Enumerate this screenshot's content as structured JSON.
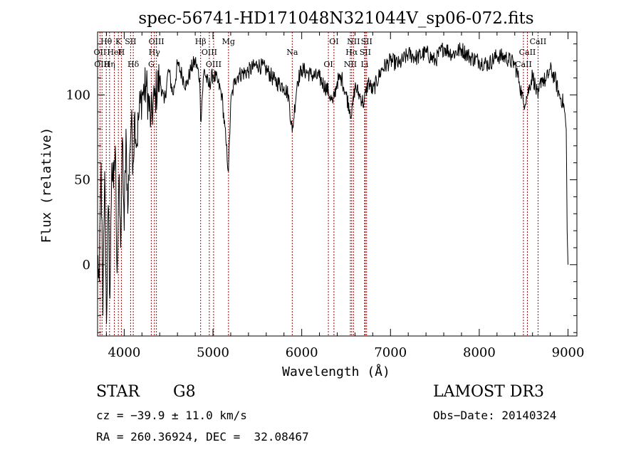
{
  "chart_data": {
    "type": "line",
    "title": "spec-56741-HD171048N321044V_sp06-072.fits",
    "xlabel": "Wavelength (Å)",
    "ylabel": "Flux (relative)",
    "xlim": [
      3700,
      9100
    ],
    "ylim": [
      -42,
      137
    ],
    "x_ticks": [
      4000,
      5000,
      6000,
      7000,
      8000,
      9000
    ],
    "x_tick_labels": [
      "4000",
      "5000",
      "6000",
      "7000",
      "8000",
      "9000"
    ],
    "y_ticks": [
      0,
      50,
      100
    ],
    "y_tick_labels": [
      "0",
      "50",
      "100"
    ],
    "series": [
      {
        "name": "flux",
        "x": [
          3700,
          3720,
          3740,
          3760,
          3780,
          3800,
          3820,
          3840,
          3860,
          3880,
          3900,
          3920,
          3940,
          3960,
          3980,
          4000,
          4020,
          4040,
          4060,
          4080,
          4100,
          4120,
          4140,
          4160,
          4180,
          4200,
          4250,
          4300,
          4350,
          4400,
          4450,
          4500,
          4550,
          4600,
          4650,
          4700,
          4750,
          4800,
          4850,
          4861,
          4900,
          4950,
          5000,
          5050,
          5100,
          5150,
          5175,
          5200,
          5250,
          5300,
          5400,
          5500,
          5600,
          5700,
          5800,
          5850,
          5893,
          5950,
          6000,
          6100,
          6200,
          6300,
          6350,
          6400,
          6450,
          6500,
          6563,
          6600,
          6650,
          6700,
          6750,
          6800,
          6900,
          7000,
          7100,
          7200,
          7300,
          7400,
          7500,
          7600,
          7700,
          7800,
          7900,
          8000,
          8100,
          8200,
          8300,
          8400,
          8450,
          8498,
          8542,
          8600,
          8662,
          8700,
          8750,
          8800,
          8850,
          8900,
          8950,
          8980,
          8990,
          9000
        ],
        "y": [
          5,
          -10,
          60,
          -30,
          55,
          -35,
          35,
          -20,
          60,
          45,
          70,
          -5,
          50,
          10,
          75,
          20,
          80,
          30,
          65,
          85,
          60,
          90,
          70,
          85,
          95,
          100,
          105,
          85,
          100,
          110,
          95,
          115,
          100,
          118,
          112,
          105,
          115,
          120,
          110,
          85,
          115,
          105,
          112,
          108,
          100,
          70,
          55,
          95,
          110,
          112,
          114,
          118,
          115,
          108,
          105,
          100,
          78,
          108,
          115,
          112,
          110,
          102,
          95,
          108,
          110,
          100,
          88,
          105,
          100,
          95,
          108,
          102,
          115,
          120,
          118,
          124,
          122,
          125,
          120,
          128,
          124,
          127,
          122,
          120,
          118,
          123,
          122,
          118,
          108,
          95,
          100,
          112,
          98,
          110,
          108,
          115,
          110,
          100,
          95,
          80,
          20,
          0
        ]
      }
    ],
    "line_markers": [
      {
        "label": "Hθ",
        "x": 3798
      },
      {
        "label": "OII",
        "x": 3727
      },
      {
        "label": "OIII",
        "x": 3750
      },
      {
        "label": "K",
        "x": 3934
      },
      {
        "label": "HeI",
        "x": 3889
      },
      {
        "label": "Hη",
        "x": 3835
      },
      {
        "label": "SII",
        "x": 4072
      },
      {
        "label": "H",
        "x": 3968
      },
      {
        "label": "Hδ",
        "x": 4102
      },
      {
        "label": "OIII",
        "x": 4363
      },
      {
        "label": "Hγ",
        "x": 4340
      },
      {
        "label": "G",
        "x": 4305
      },
      {
        "label": "Hβ",
        "x": 4861
      },
      {
        "label": "OIII",
        "x": 4959
      },
      {
        "label": "OIII",
        "x": 5007
      },
      {
        "label": "Mg",
        "x": 5175
      },
      {
        "label": "Na",
        "x": 5893
      },
      {
        "label": "OI",
        "x": 6300
      },
      {
        "label": "OI",
        "x": 6363
      },
      {
        "label": "Hα",
        "x": 6563
      },
      {
        "label": "NII",
        "x": 6548
      },
      {
        "label": "NII",
        "x": 6583
      },
      {
        "label": "SII",
        "x": 6716
      },
      {
        "label": "Li",
        "x": 6708
      },
      {
        "label": "SII",
        "x": 6731
      },
      {
        "label": "CaII",
        "x": 8542
      },
      {
        "label": "CaII",
        "x": 8498
      },
      {
        "label": "CaII",
        "x": 8662
      }
    ]
  },
  "info": {
    "class": "STAR",
    "subclass": "G8",
    "survey": "LAMOST DR3",
    "cz": "cz = −39.9 ± 11.0 km/s",
    "obs_date": "Obs−Date: 20140324",
    "coords": "RA = 260.36924, DEC =  32.08467"
  },
  "colors": {
    "spectrum": "#000000",
    "marker": "#b00000",
    "axis": "#000000",
    "background": "#ffffff"
  }
}
